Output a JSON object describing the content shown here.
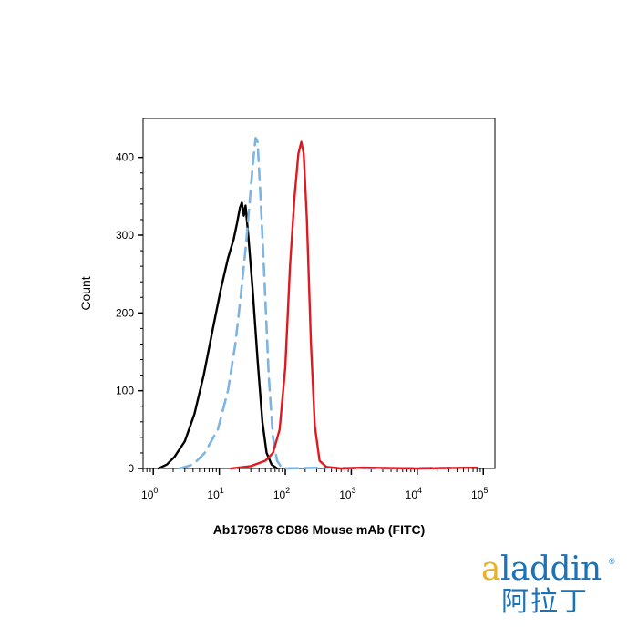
{
  "chart_data": {
    "type": "histogram-overlay",
    "title": "",
    "xlabel": "Ab179678 CD86 Mouse mAb (FITC)",
    "ylabel": "Count",
    "x_scale": "log",
    "xlim": [
      0.7,
      150000
    ],
    "ylim": [
      0,
      450
    ],
    "y_ticks": [
      0,
      100,
      200,
      300,
      400
    ],
    "x_ticks": [
      {
        "base": "10",
        "exp": "0"
      },
      {
        "base": "10",
        "exp": "1"
      },
      {
        "base": "10",
        "exp": "2"
      },
      {
        "base": "10",
        "exp": "3"
      },
      {
        "base": "10",
        "exp": "4"
      },
      {
        "base": "10",
        "exp": "5"
      }
    ],
    "grid": false,
    "series": [
      {
        "color": "#000000",
        "style": "solid",
        "points": [
          [
            1.2,
            0
          ],
          [
            1.6,
            5
          ],
          [
            2.1,
            15
          ],
          [
            3.0,
            35
          ],
          [
            4.2,
            70
          ],
          [
            5.8,
            120
          ],
          [
            8.0,
            180
          ],
          [
            10.5,
            230
          ],
          [
            13.5,
            270
          ],
          [
            16.5,
            295
          ],
          [
            18.5,
            315
          ],
          [
            20.5,
            335
          ],
          [
            22.0,
            342
          ],
          [
            23.5,
            325
          ],
          [
            25.0,
            338
          ],
          [
            27.5,
            300
          ],
          [
            32.0,
            230
          ],
          [
            38.0,
            140
          ],
          [
            45.0,
            60
          ],
          [
            52.0,
            20
          ],
          [
            62.0,
            5
          ],
          [
            75.0,
            0
          ]
        ]
      },
      {
        "color": "#7db4e2",
        "style": "dashed",
        "points": [
          [
            2.5,
            0
          ],
          [
            4.0,
            5
          ],
          [
            6.0,
            20
          ],
          [
            9.5,
            50
          ],
          [
            13.5,
            100
          ],
          [
            17.5,
            160
          ],
          [
            21.0,
            220
          ],
          [
            25.5,
            290
          ],
          [
            29.0,
            345
          ],
          [
            32.5,
            395
          ],
          [
            35.5,
            425
          ],
          [
            38.0,
            420
          ],
          [
            41.5,
            360
          ],
          [
            48.0,
            250
          ],
          [
            56.0,
            120
          ],
          [
            65.0,
            40
          ],
          [
            75.0,
            10
          ],
          [
            90.0,
            0
          ],
          [
            400,
            1
          ],
          [
            2000,
            0
          ],
          [
            80000,
            1
          ]
        ]
      },
      {
        "color": "#e0191f",
        "style": "solid",
        "points": [
          [
            15.0,
            0
          ],
          [
            30.0,
            3
          ],
          [
            50.0,
            10
          ],
          [
            65.0,
            20
          ],
          [
            82.0,
            50
          ],
          [
            100.0,
            130
          ],
          [
            118.0,
            260
          ],
          [
            138.0,
            350
          ],
          [
            158.0,
            405
          ],
          [
            175.0,
            420
          ],
          [
            190.0,
            405
          ],
          [
            212.0,
            320
          ],
          [
            245.0,
            160
          ],
          [
            280.0,
            55
          ],
          [
            330.0,
            10
          ],
          [
            420.0,
            2
          ],
          [
            700,
            0
          ],
          [
            1500,
            1
          ],
          [
            10000,
            0
          ],
          [
            80000,
            1
          ]
        ]
      }
    ]
  },
  "branding": {
    "logo_word_prefix": "a",
    "logo_word_rest": "laddin",
    "logo_reg": "®",
    "logo_cn": "阿拉丁"
  }
}
